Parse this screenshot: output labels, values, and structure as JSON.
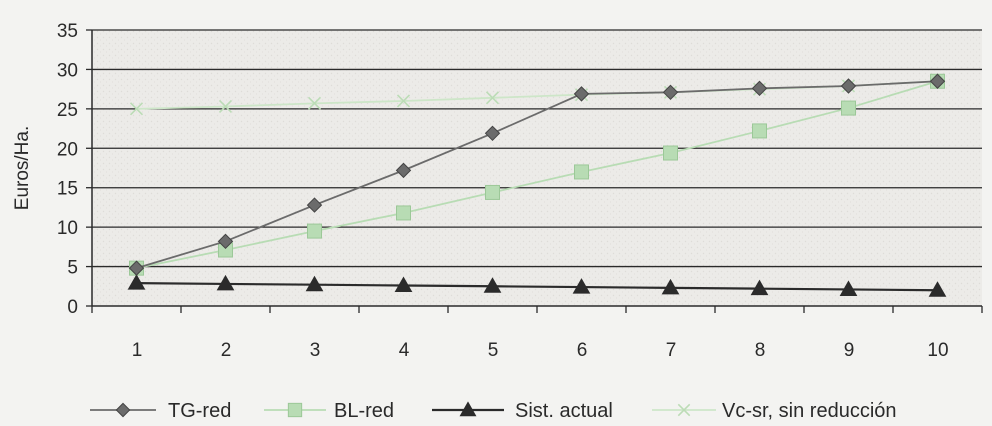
{
  "chart_data": {
    "type": "line",
    "title": "",
    "xlabel": "",
    "ylabel": "Euros/Ha.",
    "ylim": [
      0,
      35
    ],
    "xlim": [
      0,
      10
    ],
    "y_ticks": [
      0,
      5,
      10,
      15,
      20,
      25,
      30,
      35
    ],
    "x_ticks": [
      1,
      2,
      3,
      4,
      5,
      6,
      7,
      8,
      9,
      10
    ],
    "grid": "horizontal",
    "legend_position": "bottom",
    "x": [
      0.5,
      1.5,
      2.5,
      3.5,
      4.5,
      5.5,
      6.5,
      7.5,
      8.5,
      9.5
    ],
    "series": [
      {
        "name": "TG-red",
        "marker": "diamond",
        "color": "#6b6b6b",
        "values": [
          4.8,
          8.2,
          12.8,
          17.2,
          21.9,
          26.9,
          27.1,
          27.6,
          27.9,
          28.5
        ]
      },
      {
        "name": "BL-red",
        "marker": "square",
        "color": "#b8dcb4",
        "values": [
          4.8,
          7.1,
          9.5,
          11.8,
          14.4,
          17.0,
          19.4,
          22.2,
          25.1,
          28.5
        ]
      },
      {
        "name": "Sist. actual",
        "marker": "triangle",
        "color": "#2b2b2b",
        "values": [
          2.9,
          2.8,
          2.7,
          2.6,
          2.5,
          2.4,
          2.3,
          2.2,
          2.1,
          2.0
        ]
      },
      {
        "name": "Vc-sr, sin reducción",
        "marker": "x",
        "color": "#cde6c8",
        "values": [
          25.0,
          25.3,
          25.7,
          26.0,
          26.4,
          26.8,
          27.1,
          27.5,
          27.9,
          28.5
        ]
      }
    ]
  }
}
